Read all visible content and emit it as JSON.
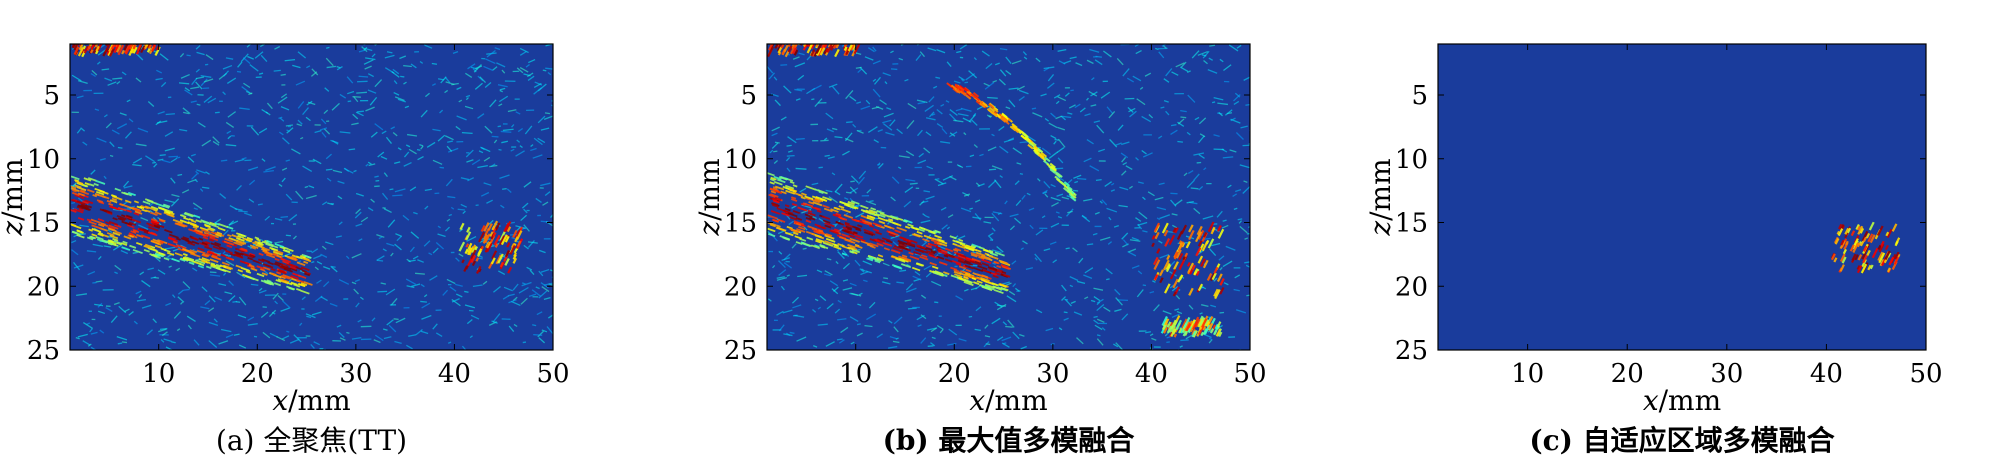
{
  "chart_data": [
    {
      "type": "heatmap",
      "caption": "(a) 全聚焦(TT)",
      "caption_id": "(a)",
      "caption_text": "全聚焦(TT)",
      "caption_bold": false,
      "xlabel": {
        "var": "x",
        "unit": "/mm"
      },
      "ylabel": {
        "var": "z",
        "unit": "/mm"
      },
      "xlim": [
        1,
        50
      ],
      "ylim": [
        1,
        25
      ],
      "y_reversed": true,
      "xticks": [
        10,
        20,
        30,
        40,
        50
      ],
      "yticks": [
        5,
        10,
        15,
        20,
        25
      ],
      "colormap": "jet",
      "background_color": "#1a3c9c",
      "features": [
        {
          "kind": "cluster",
          "x": [
            1,
            10
          ],
          "z": [
            1,
            2
          ],
          "intensity": 0.95
        },
        {
          "kind": "diagonal_band",
          "x": [
            1,
            25
          ],
          "z": [
            11,
            21
          ],
          "intensity": 0.65
        },
        {
          "kind": "cluster",
          "x": [
            40.5,
            46.5
          ],
          "z": [
            15.5,
            19
          ],
          "intensity": 0.9
        }
      ]
    },
    {
      "type": "heatmap",
      "caption": "(b) 最大值多模融合",
      "caption_id": "(b)",
      "caption_text": "最大值多模融合",
      "caption_bold": true,
      "xlabel": {
        "var": "x",
        "unit": "/mm"
      },
      "ylabel": {
        "var": "z",
        "unit": "/mm"
      },
      "xlim": [
        1,
        50
      ],
      "ylim": [
        1,
        25
      ],
      "y_reversed": true,
      "xticks": [
        10,
        20,
        30,
        40,
        50
      ],
      "yticks": [
        5,
        10,
        15,
        20,
        25
      ],
      "colormap": "jet",
      "background_color": "#1a3c9c",
      "features": [
        {
          "kind": "cluster",
          "x": [
            1,
            10
          ],
          "z": [
            1,
            2
          ],
          "intensity": 0.95
        },
        {
          "kind": "diagonal_band",
          "x": [
            1,
            25
          ],
          "z": [
            11,
            21
          ],
          "intensity": 0.65
        },
        {
          "kind": "arc",
          "x": [
            19,
            32
          ],
          "z": [
            4,
            13
          ],
          "intensity": 0.85
        },
        {
          "kind": "cluster",
          "x": [
            40,
            47
          ],
          "z": [
            15.5,
            21
          ],
          "intensity": 0.9
        },
        {
          "kind": "cluster",
          "x": [
            41,
            47
          ],
          "z": [
            23,
            24
          ],
          "intensity": 0.75
        }
      ]
    },
    {
      "type": "heatmap",
      "caption": "(c) 自适应区域多模融合",
      "caption_id": "(c)",
      "caption_text": "自适应区域多模融合",
      "caption_bold": true,
      "xlabel": {
        "var": "x",
        "unit": "/mm"
      },
      "ylabel": {
        "var": "z",
        "unit": "/mm"
      },
      "xlim": [
        1,
        50
      ],
      "ylim": [
        1,
        25
      ],
      "y_reversed": true,
      "xticks": [
        10,
        20,
        30,
        40,
        50
      ],
      "yticks": [
        5,
        10,
        15,
        20,
        25
      ],
      "colormap": "jet",
      "background_color": "#1a3c9c",
      "features": [
        {
          "kind": "cluster",
          "x": [
            40.5,
            47
          ],
          "z": [
            15.5,
            19
          ],
          "intensity": 0.9
        }
      ]
    }
  ]
}
